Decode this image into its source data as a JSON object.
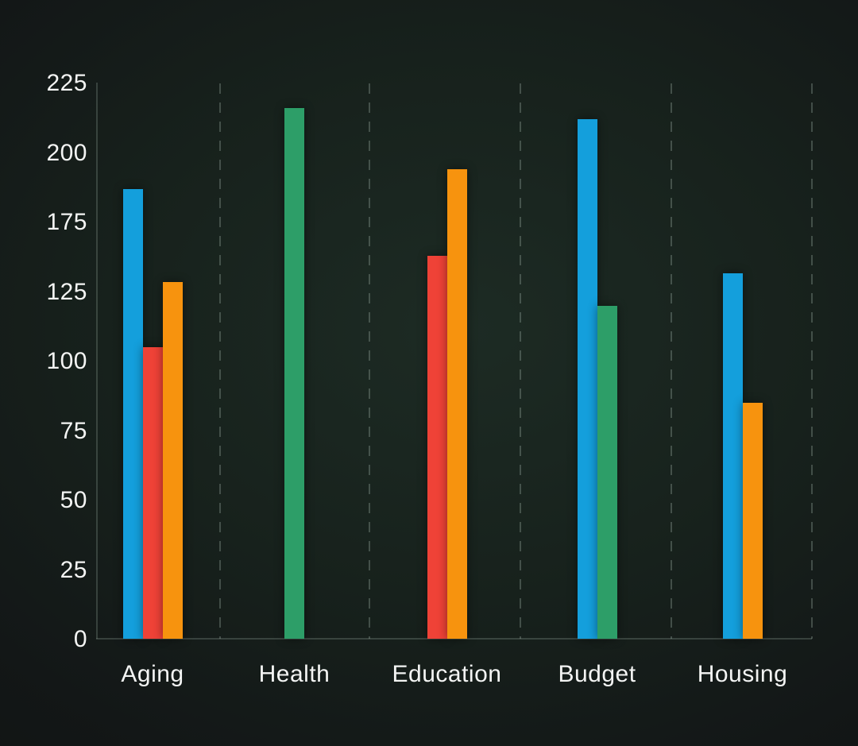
{
  "chart_data": {
    "type": "bar",
    "title": "",
    "categories": [
      "Aging",
      "Health",
      "Education",
      "Budget",
      "Housing"
    ],
    "series": [
      {
        "name": "series-blue",
        "color": "#149FDC",
        "values": [
          187,
          null,
          null,
          212,
          138
        ]
      },
      {
        "name": "series-red",
        "color": "#EF4237",
        "values": [
          105,
          null,
          151,
          null,
          null
        ]
      },
      {
        "name": "series-orange",
        "color": "#F7930E",
        "values": [
          132,
          null,
          194,
          null,
          85
        ]
      },
      {
        "name": "series-green",
        "color": "#2D9E68",
        "values": [
          null,
          216,
          null,
          120,
          null
        ]
      }
    ],
    "y_tick_labels_top_to_bottom": [
      "225",
      "200",
      "175",
      "125",
      "100",
      "75",
      "50",
      "25",
      "0"
    ],
    "ylim": [
      0,
      225
    ],
    "xlabel": "",
    "ylabel": "",
    "grid": "vertical dashed separators between categories, no horizontal gridlines",
    "legend_position": "none",
    "colors": {
      "background_center": "#1d2b24",
      "background_edge": "#111413",
      "tick_text": "#f3f4f3",
      "axis_line": "rgba(158,176,166,0.26)",
      "grid_line": "rgba(152,170,160,0.34)"
    }
  }
}
